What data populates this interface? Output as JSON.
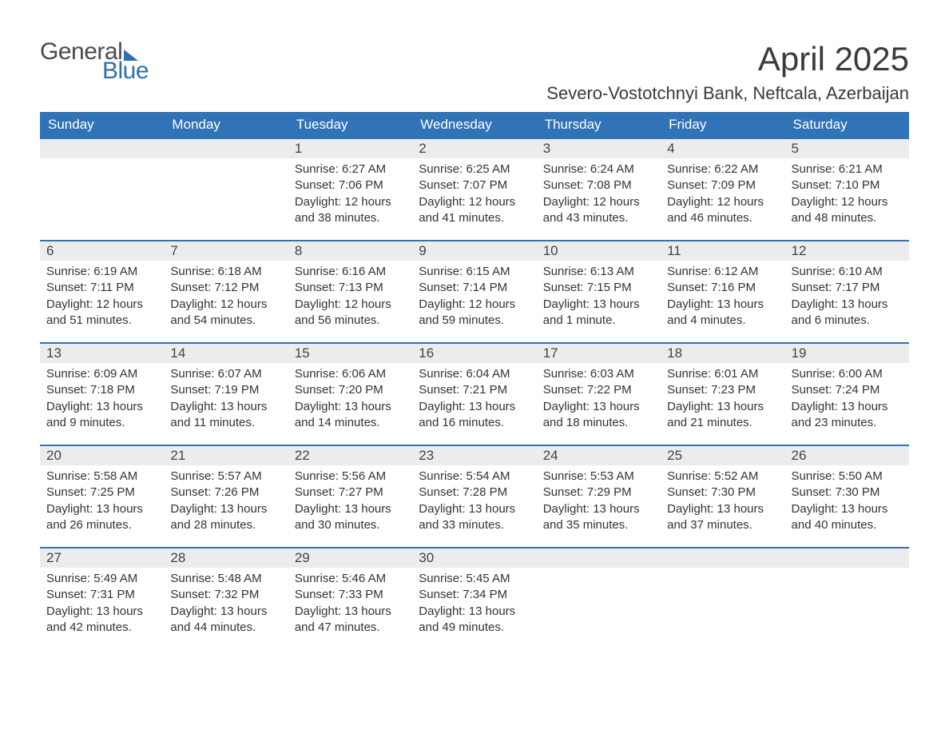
{
  "brand": {
    "word1": "General",
    "word2": "Blue"
  },
  "title": "April 2025",
  "location": "Severo-Vostotchnyi Bank, Neftcala, Azerbaijan",
  "colors": {
    "header_bg": "#3173b7",
    "header_text": "#ffffff",
    "daynum_bg": "#ececec",
    "daynum_border": "#3173b7",
    "body_text": "#333333",
    "page_bg": "#ffffff",
    "logo_gray": "#4a4a4a",
    "logo_blue": "#2f6fb0"
  },
  "typography": {
    "title_fontsize": 42,
    "location_fontsize": 22,
    "header_fontsize": 17,
    "daynum_fontsize": 17,
    "body_fontsize": 15
  },
  "calendar": {
    "first_weekday_index": 2,
    "days_in_month": 30,
    "weekdays": [
      "Sunday",
      "Monday",
      "Tuesday",
      "Wednesday",
      "Thursday",
      "Friday",
      "Saturday"
    ],
    "days": [
      {
        "n": 1,
        "sunrise": "6:27 AM",
        "sunset": "7:06 PM",
        "daylight": "12 hours and 38 minutes."
      },
      {
        "n": 2,
        "sunrise": "6:25 AM",
        "sunset": "7:07 PM",
        "daylight": "12 hours and 41 minutes."
      },
      {
        "n": 3,
        "sunrise": "6:24 AM",
        "sunset": "7:08 PM",
        "daylight": "12 hours and 43 minutes."
      },
      {
        "n": 4,
        "sunrise": "6:22 AM",
        "sunset": "7:09 PM",
        "daylight": "12 hours and 46 minutes."
      },
      {
        "n": 5,
        "sunrise": "6:21 AM",
        "sunset": "7:10 PM",
        "daylight": "12 hours and 48 minutes."
      },
      {
        "n": 6,
        "sunrise": "6:19 AM",
        "sunset": "7:11 PM",
        "daylight": "12 hours and 51 minutes."
      },
      {
        "n": 7,
        "sunrise": "6:18 AM",
        "sunset": "7:12 PM",
        "daylight": "12 hours and 54 minutes."
      },
      {
        "n": 8,
        "sunrise": "6:16 AM",
        "sunset": "7:13 PM",
        "daylight": "12 hours and 56 minutes."
      },
      {
        "n": 9,
        "sunrise": "6:15 AM",
        "sunset": "7:14 PM",
        "daylight": "12 hours and 59 minutes."
      },
      {
        "n": 10,
        "sunrise": "6:13 AM",
        "sunset": "7:15 PM",
        "daylight": "13 hours and 1 minute."
      },
      {
        "n": 11,
        "sunrise": "6:12 AM",
        "sunset": "7:16 PM",
        "daylight": "13 hours and 4 minutes."
      },
      {
        "n": 12,
        "sunrise": "6:10 AM",
        "sunset": "7:17 PM",
        "daylight": "13 hours and 6 minutes."
      },
      {
        "n": 13,
        "sunrise": "6:09 AM",
        "sunset": "7:18 PM",
        "daylight": "13 hours and 9 minutes."
      },
      {
        "n": 14,
        "sunrise": "6:07 AM",
        "sunset": "7:19 PM",
        "daylight": "13 hours and 11 minutes."
      },
      {
        "n": 15,
        "sunrise": "6:06 AM",
        "sunset": "7:20 PM",
        "daylight": "13 hours and 14 minutes."
      },
      {
        "n": 16,
        "sunrise": "6:04 AM",
        "sunset": "7:21 PM",
        "daylight": "13 hours and 16 minutes."
      },
      {
        "n": 17,
        "sunrise": "6:03 AM",
        "sunset": "7:22 PM",
        "daylight": "13 hours and 18 minutes."
      },
      {
        "n": 18,
        "sunrise": "6:01 AM",
        "sunset": "7:23 PM",
        "daylight": "13 hours and 21 minutes."
      },
      {
        "n": 19,
        "sunrise": "6:00 AM",
        "sunset": "7:24 PM",
        "daylight": "13 hours and 23 minutes."
      },
      {
        "n": 20,
        "sunrise": "5:58 AM",
        "sunset": "7:25 PM",
        "daylight": "13 hours and 26 minutes."
      },
      {
        "n": 21,
        "sunrise": "5:57 AM",
        "sunset": "7:26 PM",
        "daylight": "13 hours and 28 minutes."
      },
      {
        "n": 22,
        "sunrise": "5:56 AM",
        "sunset": "7:27 PM",
        "daylight": "13 hours and 30 minutes."
      },
      {
        "n": 23,
        "sunrise": "5:54 AM",
        "sunset": "7:28 PM",
        "daylight": "13 hours and 33 minutes."
      },
      {
        "n": 24,
        "sunrise": "5:53 AM",
        "sunset": "7:29 PM",
        "daylight": "13 hours and 35 minutes."
      },
      {
        "n": 25,
        "sunrise": "5:52 AM",
        "sunset": "7:30 PM",
        "daylight": "13 hours and 37 minutes."
      },
      {
        "n": 26,
        "sunrise": "5:50 AM",
        "sunset": "7:30 PM",
        "daylight": "13 hours and 40 minutes."
      },
      {
        "n": 27,
        "sunrise": "5:49 AM",
        "sunset": "7:31 PM",
        "daylight": "13 hours and 42 minutes."
      },
      {
        "n": 28,
        "sunrise": "5:48 AM",
        "sunset": "7:32 PM",
        "daylight": "13 hours and 44 minutes."
      },
      {
        "n": 29,
        "sunrise": "5:46 AM",
        "sunset": "7:33 PM",
        "daylight": "13 hours and 47 minutes."
      },
      {
        "n": 30,
        "sunrise": "5:45 AM",
        "sunset": "7:34 PM",
        "daylight": "13 hours and 49 minutes."
      }
    ],
    "labels": {
      "sunrise": "Sunrise: ",
      "sunset": "Sunset: ",
      "daylight": "Daylight: "
    }
  }
}
